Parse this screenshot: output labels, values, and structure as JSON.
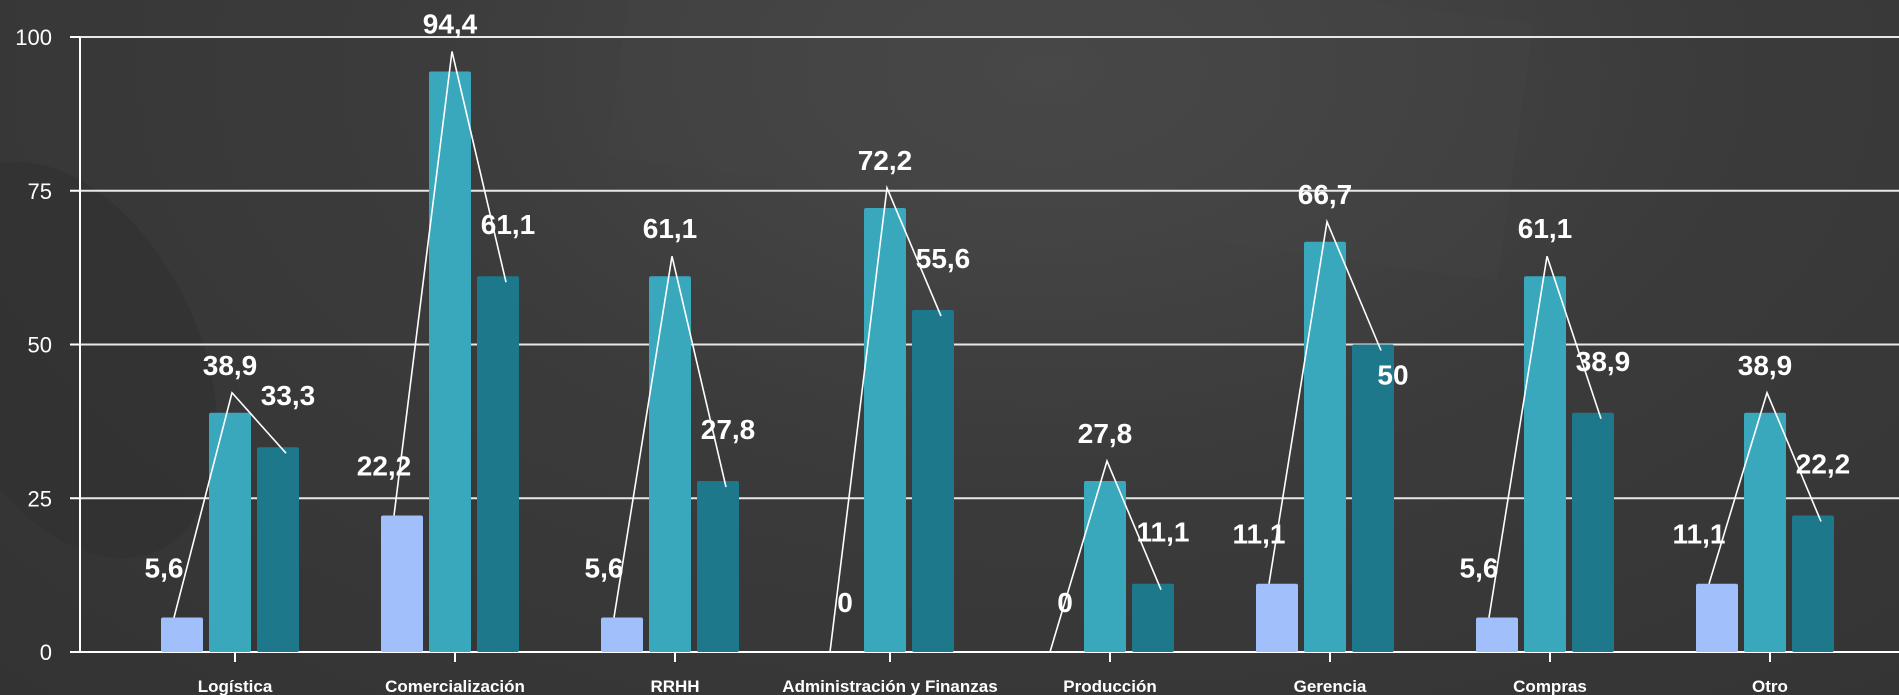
{
  "colors": {
    "series_light": "#a1bffa",
    "series_mid": "#39a8bd",
    "series_dark": "#1c788a",
    "grid": "#e8e8e8",
    "text": "#ffffff"
  },
  "chart_data": {
    "type": "bar",
    "title": "",
    "xlabel": "",
    "ylabel": "",
    "ylim": [
      0,
      100
    ],
    "yticks": [
      "0",
      "25",
      "50",
      "75",
      "100"
    ],
    "grid": true,
    "legend": "none",
    "categories": [
      "Logística",
      "Comercialización",
      "RRHH",
      "Administración y Finanzas",
      "Producción",
      "Gerencia",
      "Compras",
      "Otro"
    ],
    "series": [
      {
        "values": [
          5.6,
          22.2,
          5.6,
          0,
          0,
          11.1,
          5.6,
          11.1
        ],
        "labels": [
          "5,6",
          "22,2",
          "5,6",
          "0",
          "0",
          "11,1",
          "5,6",
          "11,1"
        ]
      },
      {
        "values": [
          38.9,
          94.4,
          61.1,
          72.2,
          27.8,
          66.7,
          61.1,
          38.9
        ],
        "labels": [
          "38,9",
          "94,4",
          "61,1",
          "72,2",
          "27,8",
          "66,7",
          "61,1",
          "38,9"
        ]
      },
      {
        "values": [
          33.3,
          61.1,
          27.8,
          55.6,
          11.1,
          50,
          38.9,
          22.2
        ],
        "labels": [
          "33,3",
          "61,1",
          "27,8",
          "55,6",
          "11,1",
          "50",
          "38,9",
          "22,2"
        ]
      }
    ]
  }
}
